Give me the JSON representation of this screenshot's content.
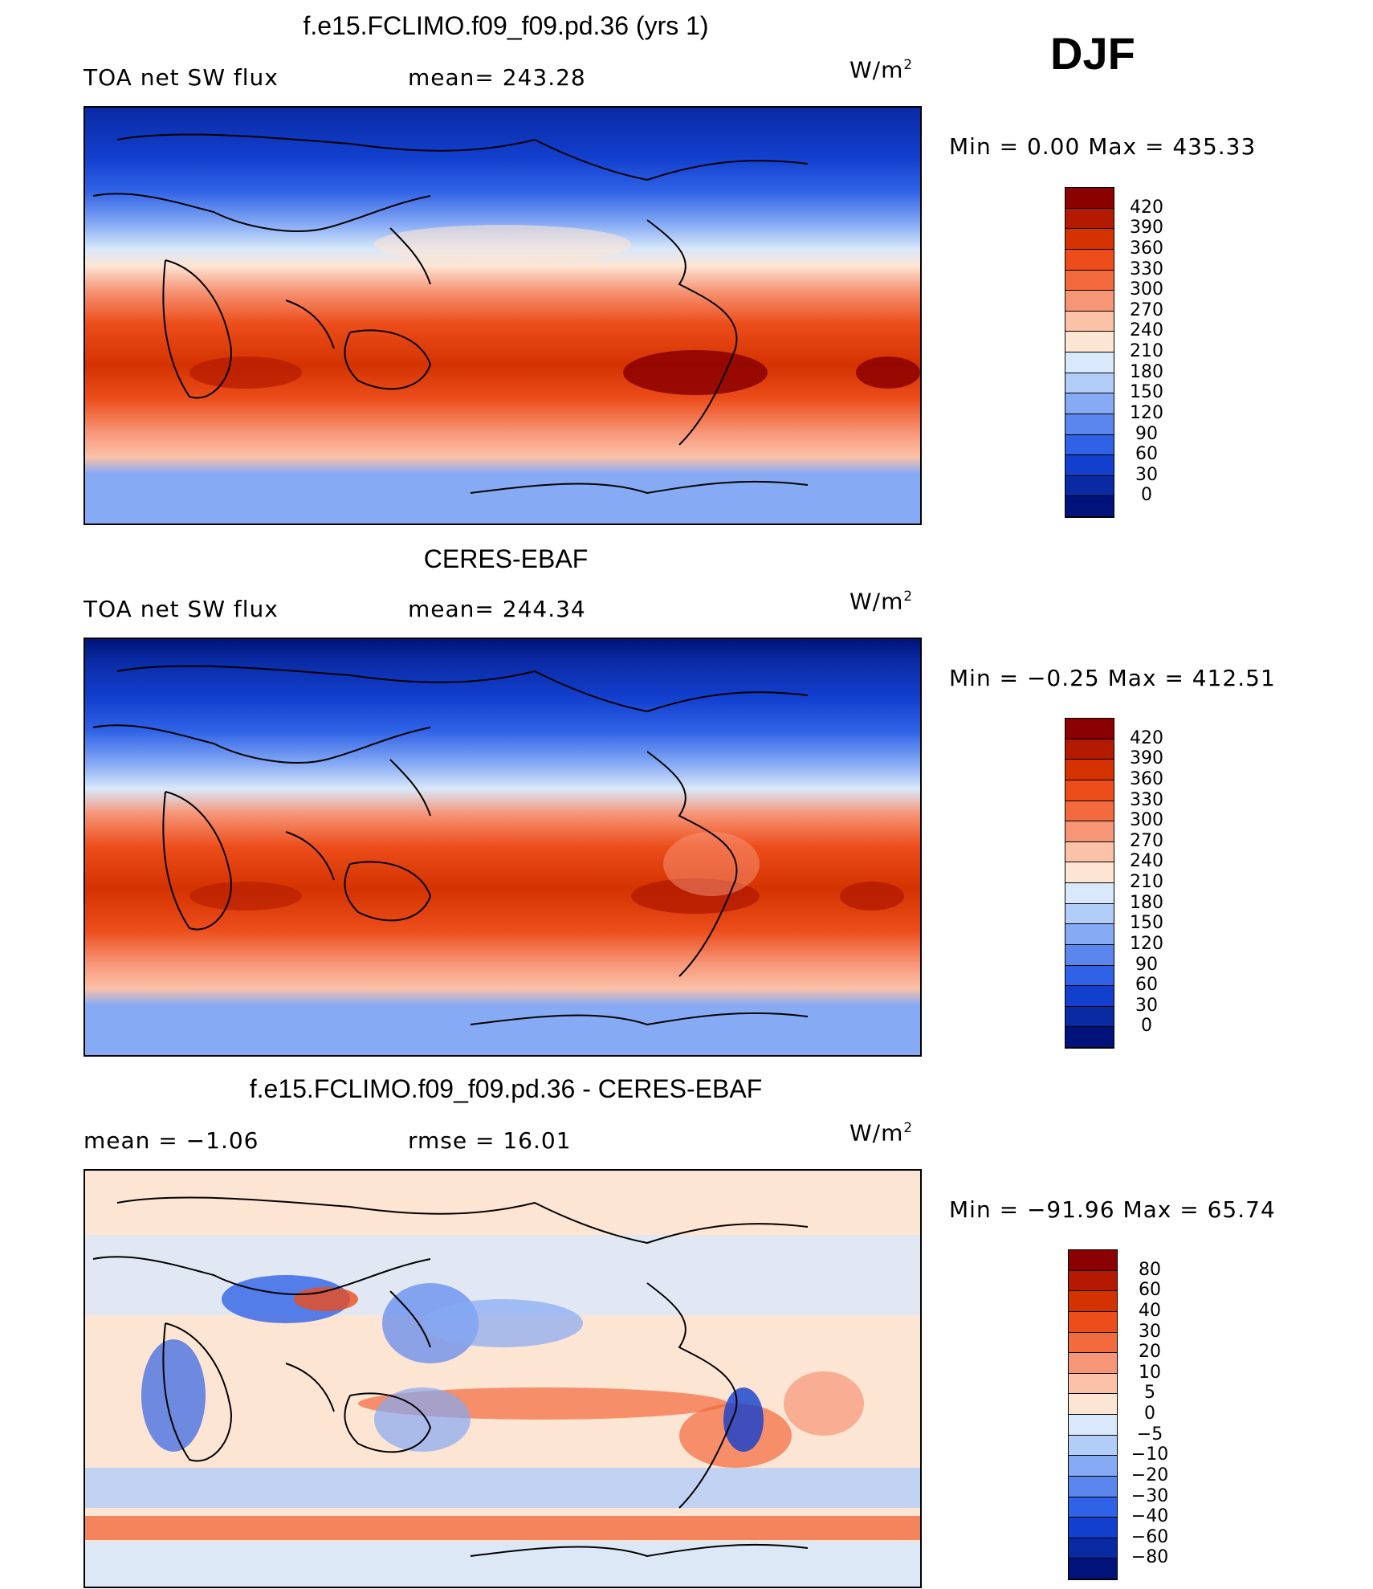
{
  "season": "DJF",
  "panels": [
    {
      "id": "model",
      "title": "f.e15.FCLIMO.f09_f09.pd.36 (yrs 1)",
      "left_text": "TOA net SW flux",
      "mid_text": "mean= 243.28",
      "units": "W/m",
      "units_sup": "2",
      "minmax": "Min =    0.00 Max = 435.33",
      "levels": [
        "420",
        "390",
        "360",
        "330",
        "300",
        "270",
        "240",
        "210",
        "180",
        "150",
        "120",
        "90",
        "60",
        "30",
        "0"
      ],
      "colors": [
        "#8b0000",
        "#b31a00",
        "#d43300",
        "#ec4d1a",
        "#f26a3d",
        "#f79577",
        "#fbc2a8",
        "#fde5d4",
        "#d9e8fb",
        "#b3cdf9",
        "#86aaf4",
        "#5a86ee",
        "#2f62e6",
        "#123fce",
        "#0a2aa3",
        "#00137a"
      ]
    },
    {
      "id": "obs",
      "title": "CERES-EBAF",
      "left_text": "TOA net SW flux",
      "mid_text": "mean= 244.34",
      "units": "W/m",
      "units_sup": "2",
      "minmax": "Min =  −0.25 Max = 412.51",
      "levels": [
        "420",
        "390",
        "360",
        "330",
        "300",
        "270",
        "240",
        "210",
        "180",
        "150",
        "120",
        "90",
        "60",
        "30",
        "0"
      ],
      "colors": [
        "#8b0000",
        "#b31a00",
        "#d43300",
        "#ec4d1a",
        "#f26a3d",
        "#f79577",
        "#fbc2a8",
        "#fde5d4",
        "#d9e8fb",
        "#b3cdf9",
        "#86aaf4",
        "#5a86ee",
        "#2f62e6",
        "#123fce",
        "#0a2aa3",
        "#00137a"
      ]
    },
    {
      "id": "diff",
      "title": "f.e15.FCLIMO.f09_f09.pd.36 - CERES-EBAF",
      "left_text": "mean =   −1.06",
      "mid_text": "rmse =   16.01",
      "units": "W/m",
      "units_sup": "2",
      "minmax": "Min = −91.96 Max =  65.74",
      "levels": [
        "80",
        "60",
        "40",
        "30",
        "20",
        "10",
        "5",
        "0",
        "−5",
        "−10",
        "−20",
        "−30",
        "−40",
        "−60",
        "−80"
      ],
      "colors": [
        "#8b0000",
        "#b31a00",
        "#d43300",
        "#ec4d1a",
        "#f26a3d",
        "#f79577",
        "#fbc2a8",
        "#fde5d4",
        "#d9e8fb",
        "#b3cdf9",
        "#86aaf4",
        "#5a86ee",
        "#2f62e6",
        "#123fce",
        "#0a2aa3",
        "#00137a"
      ]
    }
  ]
}
